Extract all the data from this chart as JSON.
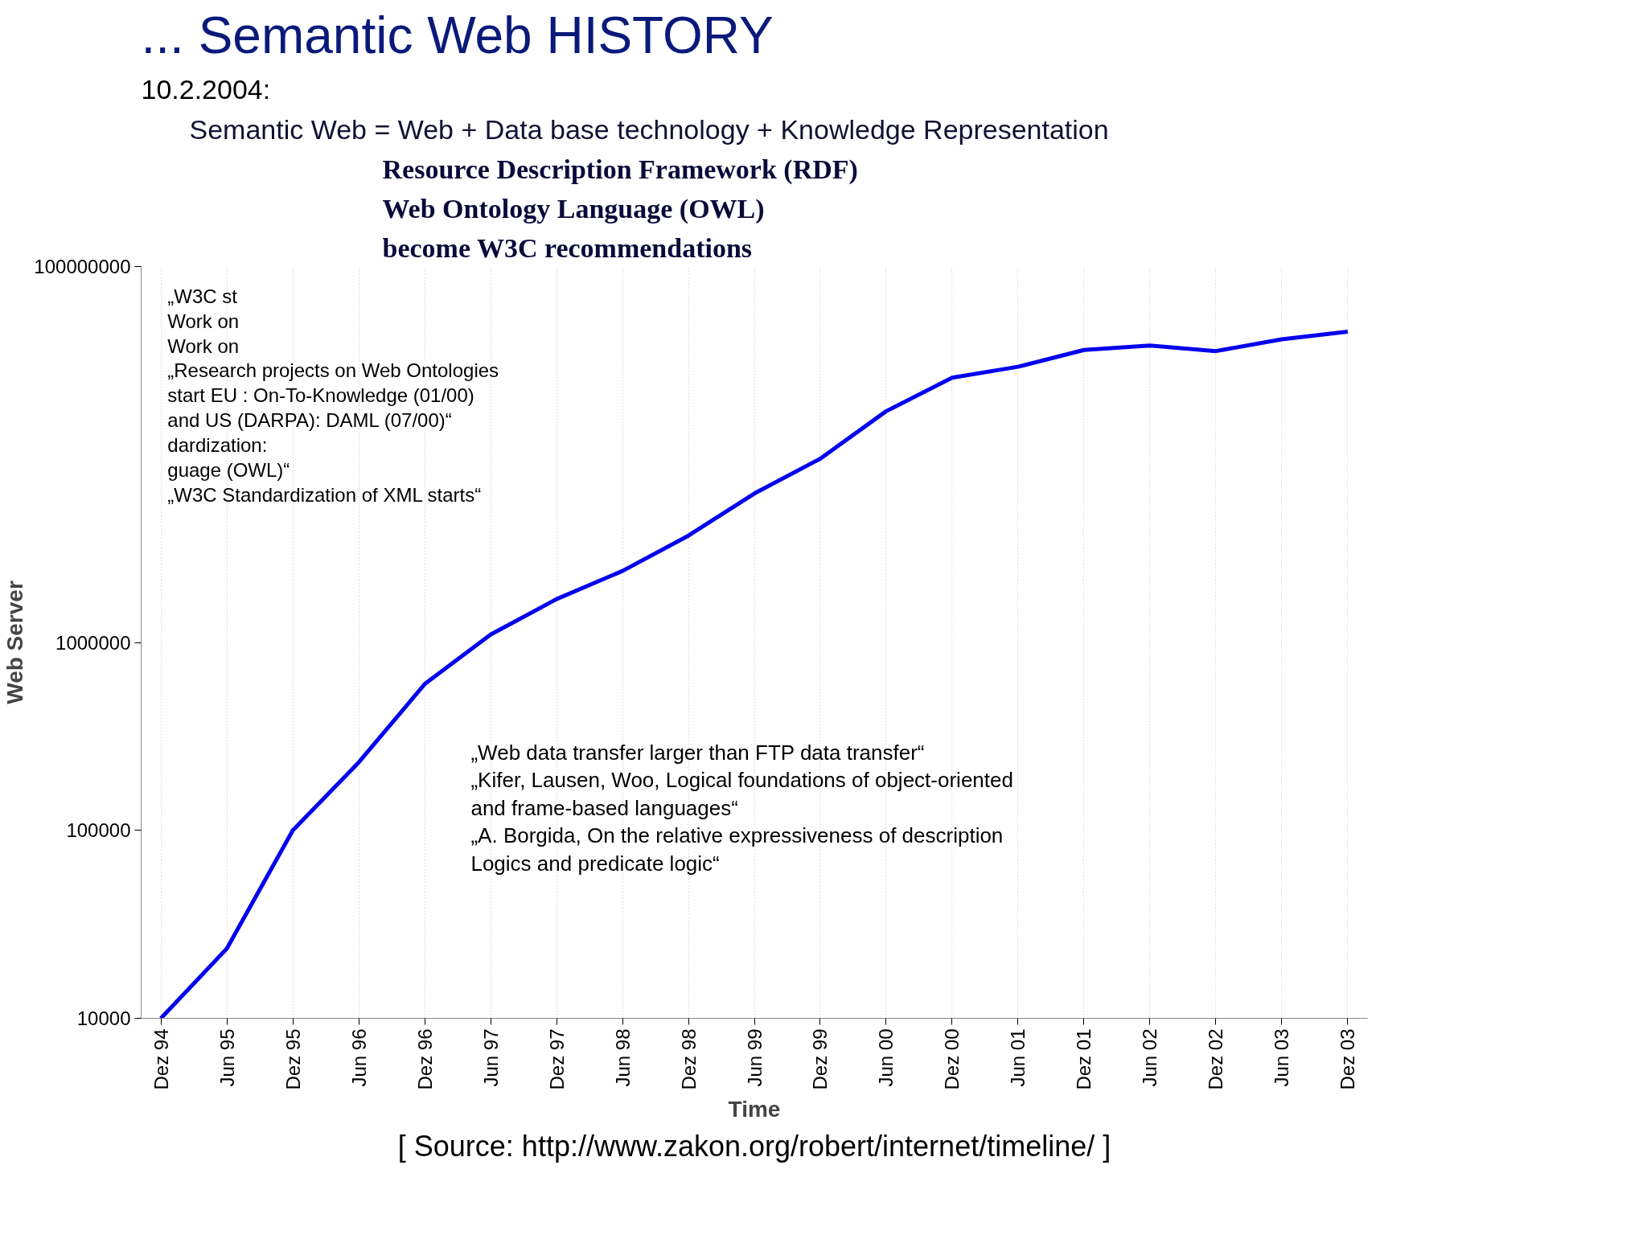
{
  "chart_data": {
    "type": "line",
    "title": "... Semantic Web HISTORY",
    "subtitle": "Semantic Web = Web + Data base technology + Knowledge Representation",
    "xlabel": "Time",
    "ylabel": "Web Server",
    "categories": [
      "Dez 94",
      "Jun 95",
      "Dez 95",
      "Jun 96",
      "Dez 96",
      "Jun 97",
      "Dez 97",
      "Jun 98",
      "Dez 98",
      "Jun 99",
      "Dez 99",
      "Jun 00",
      "Dez 00",
      "Jun 01",
      "Dez 01",
      "Jun 02",
      "Dez 02",
      "Jun 03",
      "Dez 03"
    ],
    "series": [
      {
        "color": "#0000ee",
        "values": [
          10000,
          23500,
          100000,
          230000,
          600000,
          1100000,
          1700000,
          2400000,
          3700000,
          6200000,
          9500000,
          17000000,
          25600000,
          29300000,
          36000000,
          38000000,
          35500000,
          41000000,
          45000000
        ]
      }
    ],
    "log": true,
    "ylim": [
      10000,
      100000000
    ],
    "yticks": [
      10000,
      100000,
      1000000,
      100000000
    ],
    "grid": "x",
    "annotations": [
      "10.2.2004:",
      "Resource Description Framework (RDF)",
      "Web Ontology Language (OWL)",
      "become W3C recommendations",
      "„W3C st",
      "Work on",
      "Work on",
      "„Research projects on Web Ontologies",
      "start EU : On-To-Knowledge (01/00)",
      "and US (DARPA): DAML (07/00)“",
      "dardization:",
      "guage (OWL)“",
      "„W3C Standardization of XML starts“",
      "„Web data transfer larger than FTP data transfer“",
      "„Kifer, Lausen, Woo, Logical foundations of object-oriented",
      "and frame-based languages“",
      "„A. Borgida, On the relative expressiveness of description",
      "Logics and predicate logic“",
      "[ Source: http://www.zakon.org/robert/internet/timeline/ ]"
    ]
  }
}
